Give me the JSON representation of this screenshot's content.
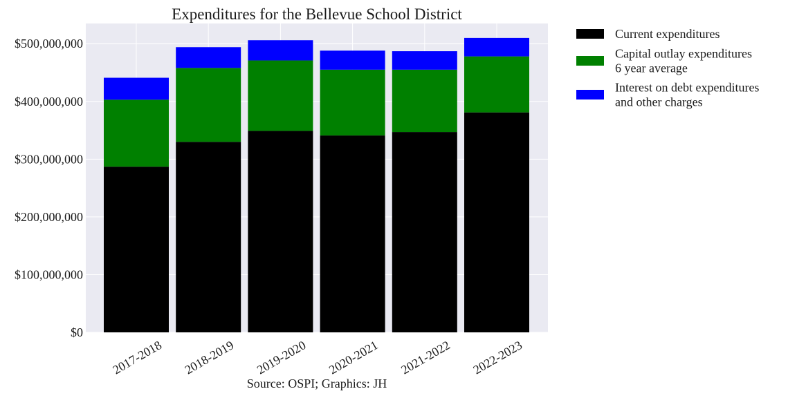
{
  "chart_data": {
    "type": "bar",
    "stacked": true,
    "title": "Expenditures for the Bellevue School District",
    "categories": [
      "2017-2018",
      "2018-2019",
      "2019-2020",
      "2020-2021",
      "2021-2022",
      "2022-2023"
    ],
    "series": [
      {
        "name": "Current expenditures",
        "color": "#000000",
        "values": [
          287000000,
          330000000,
          349000000,
          341000000,
          347000000,
          381000000
        ]
      },
      {
        "name": "Capital outlay expenditures\n6 year average",
        "color": "#008000",
        "values": [
          116000000,
          128000000,
          122000000,
          114000000,
          108000000,
          97000000
        ]
      },
      {
        "name": "Interest on debt expenditures\nand other charges",
        "color": "#0000ff",
        "values": [
          38000000,
          36000000,
          35000000,
          33000000,
          32000000,
          32000000
        ]
      }
    ],
    "ylim": [
      0,
      535000000
    ],
    "yticks": [
      0,
      100000000,
      200000000,
      300000000,
      400000000,
      500000000
    ],
    "ytick_labels": [
      "$0",
      "$100,000,000",
      "$200,000,000",
      "$300,000,000",
      "$400,000,000",
      "$500,000,000"
    ],
    "xlabel": "Source: OSPI; Graphics: JH",
    "ylabel": "",
    "grid": true,
    "legend_position": "outside-right-top",
    "plot_background": "#eaeaf2"
  }
}
